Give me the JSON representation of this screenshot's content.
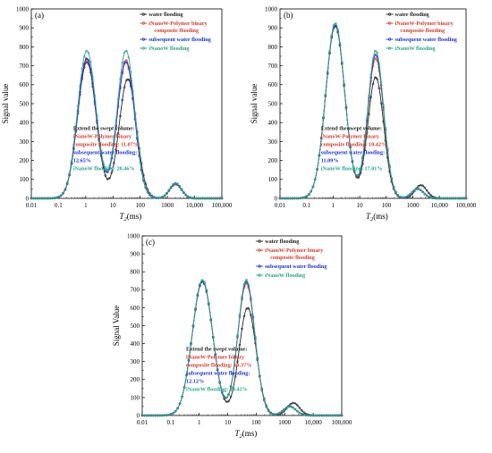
{
  "charts": [
    {
      "panel": "(a)",
      "ylabel": "Signal value",
      "xlabel_main": "T",
      "xlabel_sub": "2",
      "xlabel_unit": "(ms)",
      "x_ticks": [
        "0.01",
        "0.1",
        "1",
        "10",
        "100",
        "1000",
        "10,000",
        "100,000"
      ],
      "y_ticks": [
        "0",
        "100",
        "200",
        "300",
        "400",
        "500",
        "600",
        "700",
        "800",
        "900",
        "1000"
      ],
      "legend": [
        {
          "label": "water flooding",
          "color": "#222222"
        },
        {
          "label": "iNanoW-Polymer binary",
          "label2": "composite flooding",
          "color": "#d93a2b"
        },
        {
          "label": "subsequent water flooding",
          "color": "#1d33d6"
        },
        {
          "label": "iNanoW flooding",
          "color": "#2aa68b"
        }
      ],
      "annotation": [
        {
          "text": "Extend the swept volume:",
          "color": "#222222"
        },
        {
          "text": "iNanoW-Polymer binary",
          "color": "#d93a2b"
        },
        {
          "text": "composite flooding:  11.07%",
          "color": "#d93a2b"
        },
        {
          "text": "subsequent water flooding:",
          "color": "#1d33d6"
        },
        {
          "text": "12.65%",
          "color": "#1d33d6"
        },
        {
          "text": "iNanoW flooding:  20.46%",
          "color": "#2aa68b"
        }
      ]
    },
    {
      "panel": "(b)",
      "ylabel": "Signal value",
      "xlabel_main": "T",
      "xlabel_sub": "2",
      "xlabel_unit": "(ms)",
      "x_ticks": [
        "0.01",
        "0.1",
        "1",
        "10",
        "100",
        "1000",
        "10,000",
        "100,000"
      ],
      "y_ticks": [
        "0",
        "100",
        "200",
        "300",
        "400",
        "500",
        "600",
        "700",
        "800",
        "900",
        "1000"
      ],
      "legend": [
        {
          "label": "water flooding",
          "color": "#222222"
        },
        {
          "label": "iNanoW-Polymer binary",
          "label2": "composite flooding",
          "color": "#d93a2b"
        },
        {
          "label": "subsequent water flooding",
          "color": "#1d33d6"
        },
        {
          "label": "iNanoW flooding",
          "color": "#2aa68b"
        }
      ],
      "annotation": [
        {
          "text": "Extend the swept volume:",
          "color": "#222222"
        },
        {
          "text": "iNanoW-Polymer binary",
          "color": "#d93a2b"
        },
        {
          "text": "composite flooding:  10.42%",
          "color": "#d93a2b"
        },
        {
          "text": "subsequent water flooding:",
          "color": "#1d33d6"
        },
        {
          "text": "11.09%",
          "color": "#1d33d6"
        },
        {
          "text": "iNanoW flooding:  17.01%",
          "color": "#2aa68b"
        }
      ]
    },
    {
      "panel": "(c)",
      "ylabel": "Signal Value",
      "xlabel_main": "T",
      "xlabel_sub": "2",
      "xlabel_unit": "(ms)",
      "x_ticks": [
        "0.01",
        "0.1",
        "1",
        "10",
        "100",
        "1000",
        "10,000",
        "100,000"
      ],
      "y_ticks": [
        "0",
        "100",
        "200",
        "300",
        "400",
        "500",
        "600",
        "700",
        "800",
        "900",
        "1000"
      ],
      "legend": [
        {
          "label": "water flooding",
          "color": "#222222"
        },
        {
          "label": "iNanoW-Polymer binary",
          "label2": "composite flooding",
          "color": "#d93a2b"
        },
        {
          "label": "subsequent water flooding",
          "color": "#1d33d6"
        },
        {
          "label": "iNanoW flooding",
          "color": "#2aa68b"
        }
      ],
      "annotation": [
        {
          "text": "Extend the swept volume:",
          "color": "#222222"
        },
        {
          "text": "iNanoW-Polymer binary",
          "color": "#d93a2b"
        },
        {
          "text": "composite flooding:  10.37%",
          "color": "#d93a2b"
        },
        {
          "text": "subsequent water flooding:",
          "color": "#1d33d6"
        },
        {
          "text": "12.12%",
          "color": "#1d33d6"
        },
        {
          "text": "iNanoW flooding:  16.45%",
          "color": "#2aa68b"
        }
      ]
    }
  ],
  "chart_data": [
    {
      "type": "line",
      "x_scale": "log",
      "xlim": [
        0.01,
        100000
      ],
      "ylim": [
        0,
        1000
      ],
      "series": [
        {
          "name": "water flooding",
          "color": "#222222",
          "peaks": [
            [
              1.1,
              720,
              0.34
            ],
            [
              35,
              630,
              0.32
            ],
            [
              2000,
              80,
              0.22
            ]
          ]
        },
        {
          "name": "iNanoW-Polymer binary composite flooding",
          "color": "#d93a2b",
          "peaks": [
            [
              1.1,
              735,
              0.34
            ],
            [
              30,
              730,
              0.32
            ],
            [
              2000,
              75,
              0.22
            ]
          ]
        },
        {
          "name": "subsequent water flooding",
          "color": "#1d33d6",
          "peaks": [
            [
              1.1,
              740,
              0.34
            ],
            [
              30,
              720,
              0.32
            ],
            [
              2000,
              75,
              0.22
            ]
          ]
        },
        {
          "name": "iNanoW flooding",
          "color": "#2aa68b",
          "peaks": [
            [
              1.1,
              780,
              0.34
            ],
            [
              30,
              780,
              0.32
            ],
            [
              2000,
              80,
              0.22
            ]
          ]
        }
      ]
    },
    {
      "type": "line",
      "x_scale": "log",
      "xlim": [
        0.01,
        100000
      ],
      "ylim": [
        0,
        1000
      ],
      "series": [
        {
          "name": "water flooding",
          "color": "#222222",
          "peaks": [
            [
              1.2,
              910,
              0.36
            ],
            [
              40,
              640,
              0.3
            ],
            [
              2000,
              70,
              0.22
            ]
          ]
        },
        {
          "name": "iNanoW-Polymer binary composite flooding",
          "color": "#d93a2b",
          "peaks": [
            [
              1.2,
              915,
              0.36
            ],
            [
              40,
              740,
              0.3
            ],
            [
              1500,
              50,
              0.22
            ]
          ]
        },
        {
          "name": "subsequent water flooding",
          "color": "#1d33d6",
          "peaks": [
            [
              1.2,
              915,
              0.36
            ],
            [
              40,
              760,
              0.3
            ],
            [
              1500,
              50,
              0.22
            ]
          ]
        },
        {
          "name": "iNanoW flooding",
          "color": "#2aa68b",
          "peaks": [
            [
              1.2,
              925,
              0.36
            ],
            [
              40,
              780,
              0.3
            ],
            [
              1500,
              50,
              0.22
            ]
          ]
        }
      ]
    },
    {
      "type": "line",
      "x_scale": "log",
      "xlim": [
        0.01,
        100000
      ],
      "ylim": [
        0,
        1000
      ],
      "series": [
        {
          "name": "water flooding",
          "color": "#222222",
          "peaks": [
            [
              1.3,
              745,
              0.36
            ],
            [
              50,
              600,
              0.3
            ],
            [
              2000,
              70,
              0.22
            ]
          ]
        },
        {
          "name": "iNanoW-Polymer binary composite flooding",
          "color": "#d93a2b",
          "peaks": [
            [
              1.3,
              750,
              0.36
            ],
            [
              45,
              735,
              0.3
            ],
            [
              1500,
              50,
              0.22
            ]
          ]
        },
        {
          "name": "subsequent water flooding",
          "color": "#1d33d6",
          "peaks": [
            [
              1.3,
              748,
              0.36
            ],
            [
              45,
              745,
              0.3
            ],
            [
              1500,
              50,
              0.22
            ]
          ]
        },
        {
          "name": "iNanoW flooding",
          "color": "#2aa68b",
          "peaks": [
            [
              1.3,
              755,
              0.36
            ],
            [
              45,
              755,
              0.3
            ],
            [
              1500,
              50,
              0.22
            ]
          ]
        }
      ]
    }
  ]
}
